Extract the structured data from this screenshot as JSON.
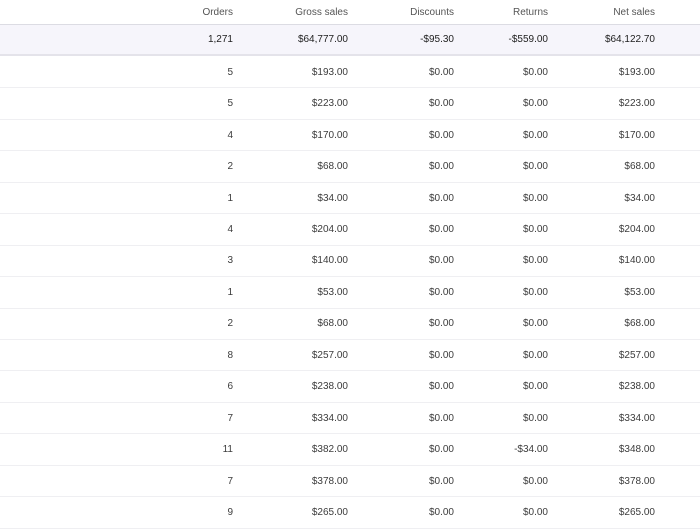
{
  "table": {
    "columns": [
      "Orders",
      "Gross sales",
      "Discounts",
      "Returns",
      "Net sales"
    ],
    "summary": [
      "1,271",
      "$64,777.00",
      "-$95.30",
      "-$559.00",
      "$64,122.70"
    ],
    "rows": [
      [
        "5",
        "$193.00",
        "$0.00",
        "$0.00",
        "$193.00"
      ],
      [
        "5",
        "$223.00",
        "$0.00",
        "$0.00",
        "$223.00"
      ],
      [
        "4",
        "$170.00",
        "$0.00",
        "$0.00",
        "$170.00"
      ],
      [
        "2",
        "$68.00",
        "$0.00",
        "$0.00",
        "$68.00"
      ],
      [
        "1",
        "$34.00",
        "$0.00",
        "$0.00",
        "$34.00"
      ],
      [
        "4",
        "$204.00",
        "$0.00",
        "$0.00",
        "$204.00"
      ],
      [
        "3",
        "$140.00",
        "$0.00",
        "$0.00",
        "$140.00"
      ],
      [
        "1",
        "$53.00",
        "$0.00",
        "$0.00",
        "$53.00"
      ],
      [
        "2",
        "$68.00",
        "$0.00",
        "$0.00",
        "$68.00"
      ],
      [
        "8",
        "$257.00",
        "$0.00",
        "$0.00",
        "$257.00"
      ],
      [
        "6",
        "$238.00",
        "$0.00",
        "$0.00",
        "$238.00"
      ],
      [
        "7",
        "$334.00",
        "$0.00",
        "$0.00",
        "$334.00"
      ],
      [
        "11",
        "$382.00",
        "$0.00",
        "-$34.00",
        "$348.00"
      ],
      [
        "7",
        "$378.00",
        "$0.00",
        "$0.00",
        "$378.00"
      ],
      [
        "9",
        "$265.00",
        "$0.00",
        "$0.00",
        "$265.00"
      ]
    ]
  }
}
